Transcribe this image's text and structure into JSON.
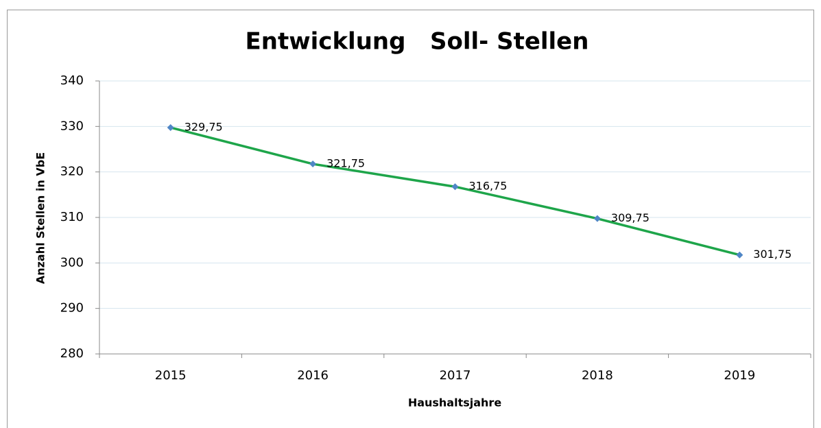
{
  "chart_data": {
    "type": "line",
    "title": "Entwicklung   Soll- Stellen",
    "x_label": "Haushaltsjahre",
    "y_label": "Anzahl Stellen in VbE",
    "categories": [
      "2015",
      "2016",
      "2017",
      "2018",
      "2019"
    ],
    "series": [
      {
        "name": "Soll- Stellen",
        "color": "#1ea54a",
        "marker_color": "#4f86c6",
        "values": [
          329.75,
          321.75,
          316.75,
          309.75,
          301.75
        ],
        "value_labels": [
          "329,75",
          "321,75",
          "316,75",
          "309,75",
          "301,75"
        ]
      }
    ],
    "ylim": [
      280,
      340
    ],
    "yticks": [
      280,
      290,
      300,
      310,
      320,
      330,
      340
    ],
    "grid": true
  }
}
